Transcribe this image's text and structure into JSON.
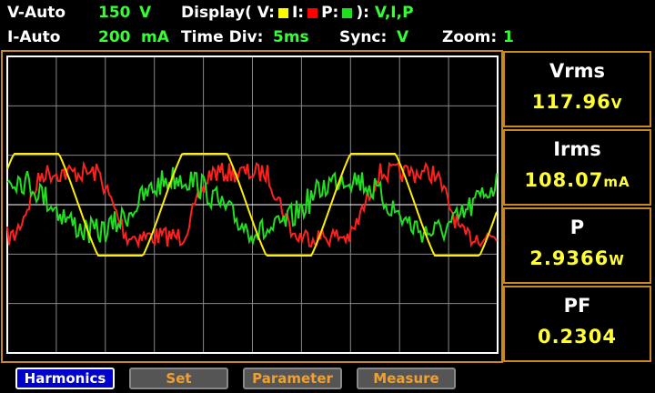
{
  "header": {
    "v_range": {
      "label": "V-Auto",
      "value": "150",
      "unit": "V"
    },
    "i_range": {
      "label": "I-Auto",
      "value": "200",
      "unit": "mA"
    },
    "display": {
      "label": "Display( V:",
      "i_label": "I:",
      "p_label": "P:",
      "close": "):",
      "value": "V,I,P"
    },
    "time_div": {
      "label": "Time Div:",
      "value": "5ms"
    },
    "sync": {
      "label": "Sync:",
      "value": "V"
    },
    "zoom": {
      "label": "Zoom:",
      "value": "1"
    }
  },
  "readings": [
    {
      "name": "Vrms",
      "value": "117.96",
      "unit": "V"
    },
    {
      "name": "Irms",
      "value": "108.07",
      "unit": "mA"
    },
    {
      "name": "P",
      "value": "2.9366",
      "unit": "W"
    },
    {
      "name": "PF",
      "value": "0.2304",
      "unit": ""
    }
  ],
  "buttons": [
    "Harmonics",
    "Set",
    "Parameter",
    "Measure"
  ]
}
